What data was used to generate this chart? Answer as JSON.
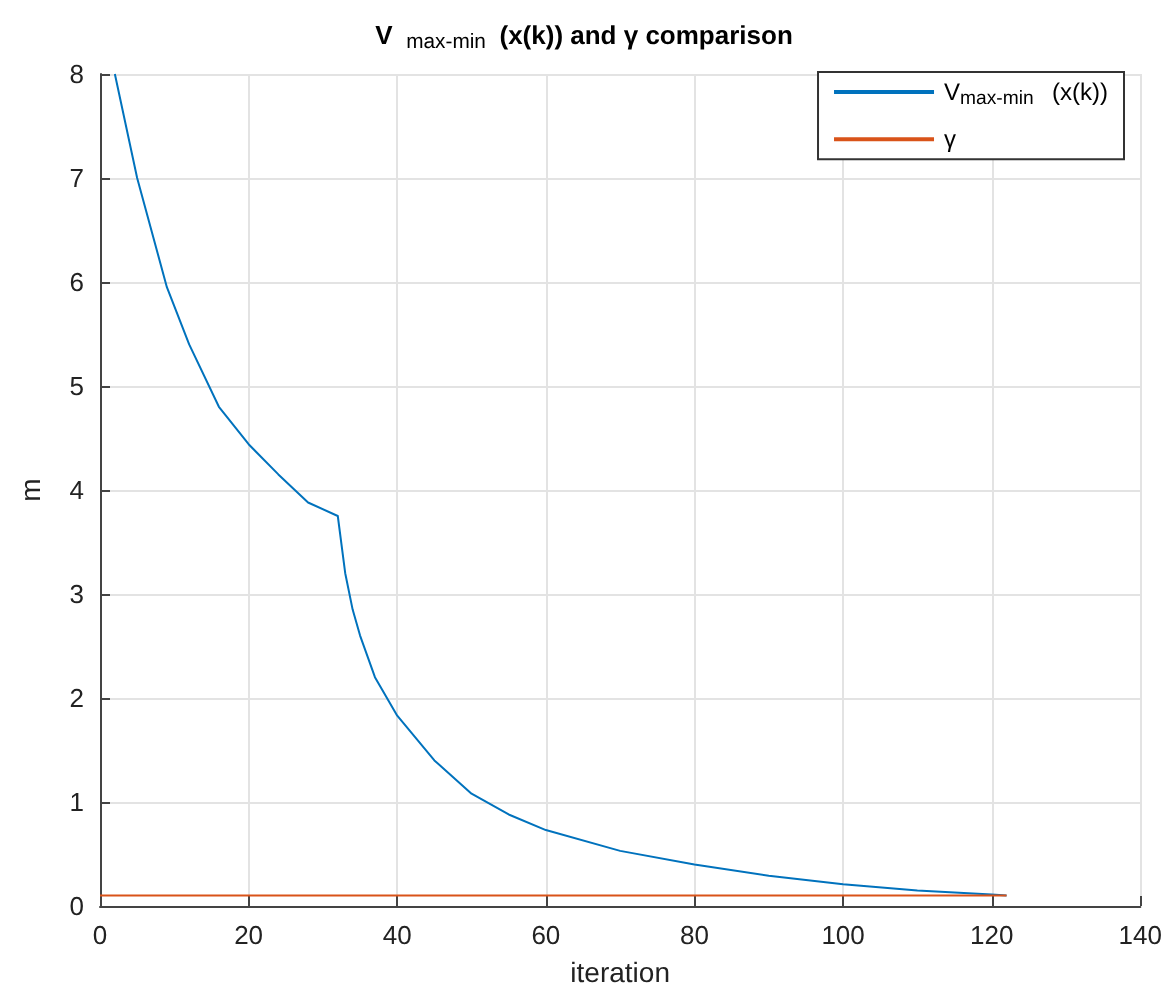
{
  "chart_data": {
    "type": "line",
    "title": "V$_{max-min}$(x(k)) and γ comparison",
    "xlabel": "iteration",
    "ylabel": "m",
    "series": [
      {
        "name": "V$_{max-min}$(x(k))",
        "color": "#0072bd",
        "x": [
          2,
          5,
          9,
          12,
          16,
          20,
          24,
          28,
          32,
          33,
          34,
          35,
          37,
          40,
          45,
          50,
          55,
          60,
          70,
          80,
          90,
          100,
          110,
          120,
          122
        ],
        "values": [
          8,
          7,
          5.95,
          5.4,
          4.8,
          4.44,
          4.15,
          3.88,
          3.75,
          3.2,
          2.85,
          2.6,
          2.2,
          1.83,
          1.4,
          1.08,
          0.88,
          0.73,
          0.53,
          0.4,
          0.29,
          0.21,
          0.15,
          0.11,
          0.1
        ]
      },
      {
        "name": "γ",
        "color": "#d95319",
        "x": [
          0,
          122
        ],
        "values": [
          0.1,
          0.1
        ]
      }
    ],
    "xlim": [
      0,
      140
    ],
    "xticks": [
      0,
      20,
      40,
      60,
      80,
      100,
      120,
      140
    ],
    "ylim": [
      0,
      8
    ],
    "yticks": [
      0,
      1,
      2,
      3,
      4,
      5,
      6,
      7,
      8
    ],
    "grid": true,
    "legend": "top right",
    "marker": "none",
    "line_style": "solid"
  }
}
